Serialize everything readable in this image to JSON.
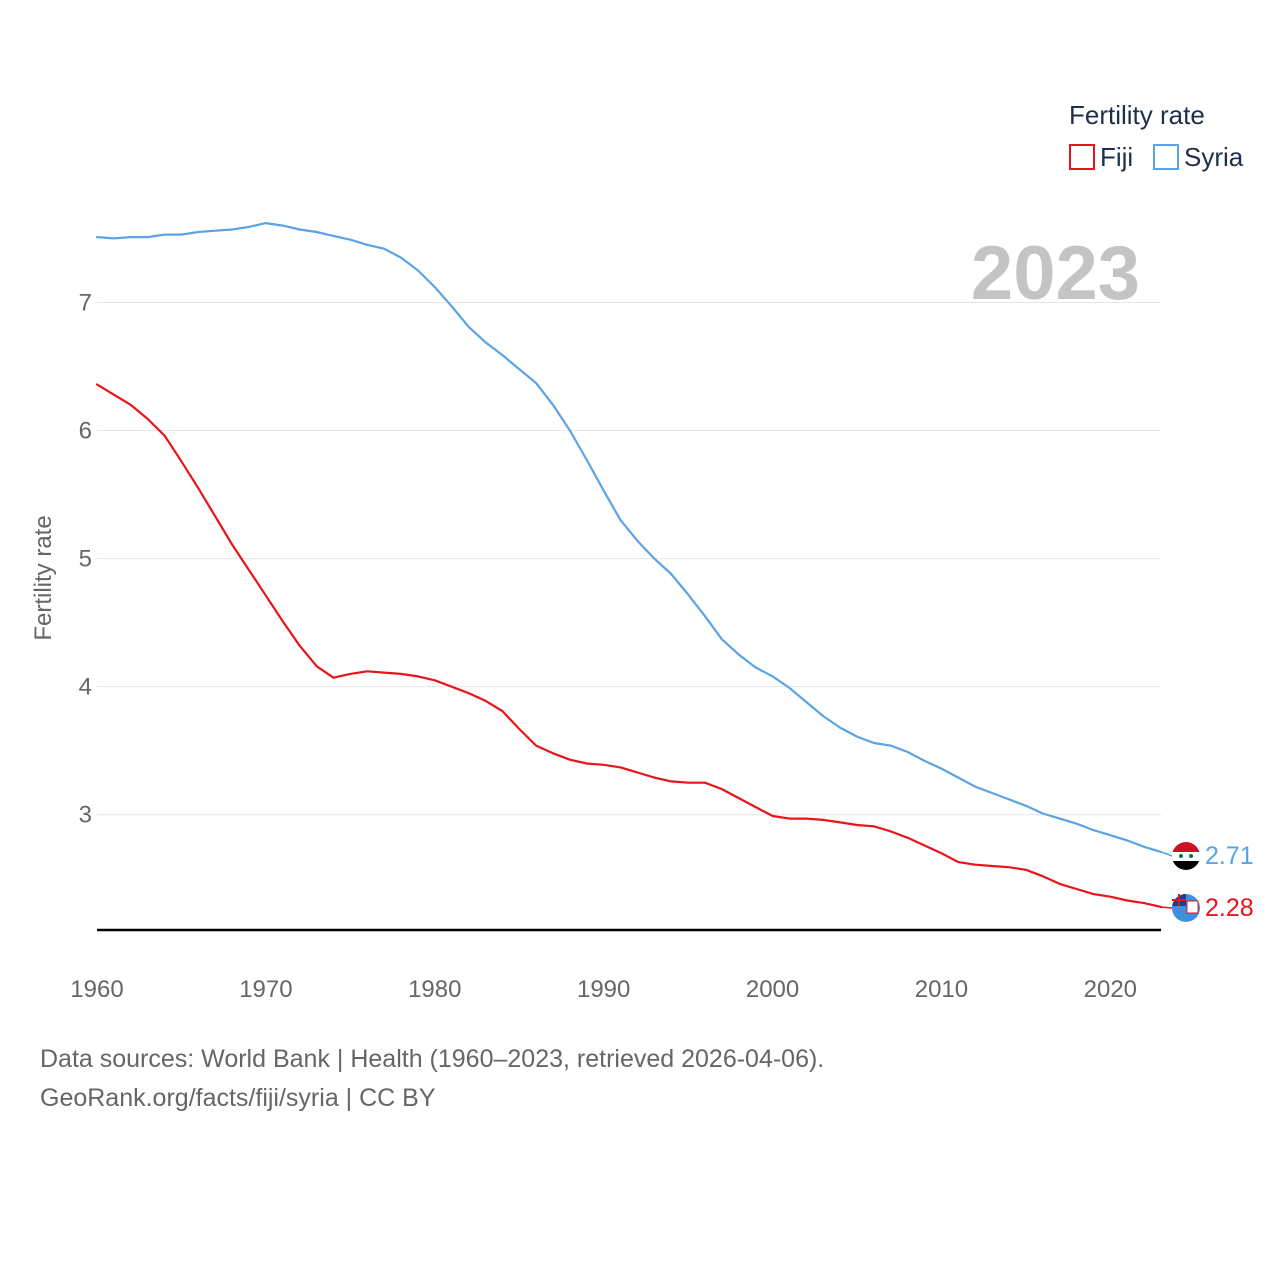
{
  "chart_data": {
    "type": "line",
    "title": "2023",
    "xlabel": "",
    "ylabel": "Fertility rate",
    "xlim": [
      1960,
      2023
    ],
    "ylim": [
      2.1,
      7.8
    ],
    "grid": true,
    "legend_title": "Fertility rate",
    "legend_position": "top-right",
    "x_ticks": [
      "1960",
      "1970",
      "1980",
      "1990",
      "2000",
      "2010",
      "2020"
    ],
    "y_ticks": [
      "3",
      "4",
      "5",
      "6",
      "7"
    ],
    "x": [
      1960,
      1961,
      1962,
      1963,
      1964,
      1965,
      1966,
      1967,
      1968,
      1969,
      1970,
      1971,
      1972,
      1973,
      1974,
      1975,
      1976,
      1977,
      1978,
      1979,
      1980,
      1981,
      1982,
      1983,
      1984,
      1985,
      1986,
      1987,
      1988,
      1989,
      1990,
      1991,
      1992,
      1993,
      1994,
      1995,
      1996,
      1997,
      1998,
      1999,
      2000,
      2001,
      2002,
      2003,
      2004,
      2005,
      2006,
      2007,
      2008,
      2009,
      2010,
      2011,
      2012,
      2013,
      2014,
      2015,
      2016,
      2017,
      2018,
      2019,
      2020,
      2021,
      2022,
      2023
    ],
    "series": [
      {
        "name": "Fiji",
        "color": "#e8141a",
        "end_label": "2.28",
        "flag": "fiji-flag-icon",
        "values": [
          6.36,
          6.28,
          6.2,
          6.09,
          5.96,
          5.76,
          5.55,
          5.33,
          5.11,
          4.91,
          4.71,
          4.51,
          4.32,
          4.16,
          4.07,
          4.1,
          4.12,
          4.11,
          4.1,
          4.08,
          4.05,
          4.0,
          3.95,
          3.89,
          3.81,
          3.67,
          3.54,
          3.48,
          3.43,
          3.4,
          3.39,
          3.37,
          3.33,
          3.29,
          3.26,
          3.25,
          3.25,
          3.2,
          3.13,
          3.06,
          2.99,
          2.97,
          2.97,
          2.96,
          2.94,
          2.92,
          2.91,
          2.87,
          2.82,
          2.76,
          2.7,
          2.63,
          2.61,
          2.6,
          2.59,
          2.57,
          2.52,
          2.46,
          2.42,
          2.38,
          2.36,
          2.33,
          2.31,
          2.28
        ]
      },
      {
        "name": "Syria",
        "color": "#5aa3e6",
        "end_label": "2.71",
        "flag": "syria-flag-icon",
        "values": [
          7.51,
          7.5,
          7.51,
          7.51,
          7.53,
          7.53,
          7.55,
          7.56,
          7.57,
          7.59,
          7.62,
          7.6,
          7.57,
          7.55,
          7.52,
          7.49,
          7.45,
          7.42,
          7.35,
          7.25,
          7.12,
          6.97,
          6.81,
          6.69,
          6.59,
          6.48,
          6.37,
          6.2,
          6.0,
          5.77,
          5.53,
          5.3,
          5.14,
          5.0,
          4.88,
          4.72,
          4.55,
          4.37,
          4.25,
          4.15,
          4.08,
          3.99,
          3.88,
          3.77,
          3.68,
          3.61,
          3.56,
          3.54,
          3.49,
          3.42,
          3.36,
          3.29,
          3.22,
          3.17,
          3.12,
          3.07,
          3.01,
          2.97,
          2.93,
          2.88,
          2.84,
          2.8,
          2.75,
          2.71
        ]
      }
    ]
  },
  "source": {
    "line1": "Data sources: World Bank | Health (1960–2023, retrieved 2026-04-06).",
    "line2": "GeoRank.org/facts/fiji/syria | CC BY"
  }
}
